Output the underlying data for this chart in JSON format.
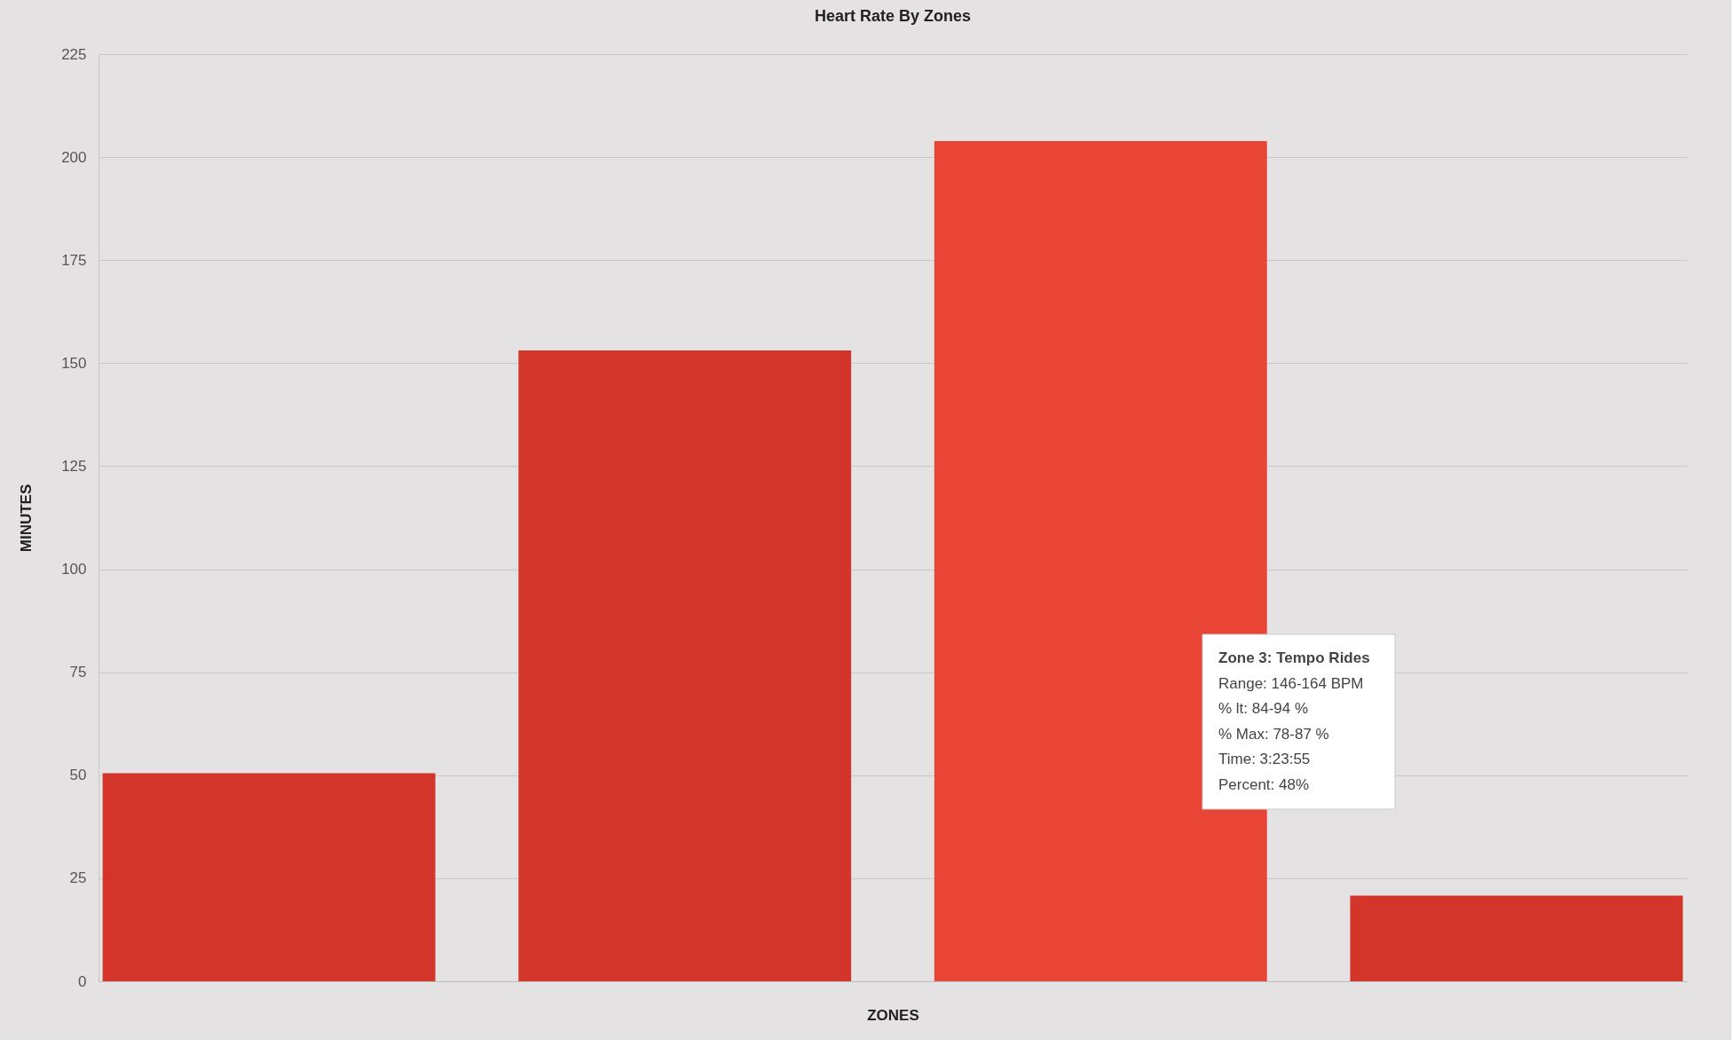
{
  "chart_data": {
    "type": "bar",
    "title": "Heart Rate By Zones",
    "xlabel": "ZONES",
    "ylabel": "MINUTES",
    "categories": [
      null,
      null,
      null,
      null
    ],
    "values": [
      50.5,
      153.1,
      203.9,
      20.8
    ],
    "colors": [
      "#d3352a",
      "#d3352a",
      "#e84536",
      "#d3352a"
    ],
    "ylim": [
      0,
      225
    ],
    "yticks": [
      0,
      25,
      50,
      75,
      100,
      125,
      150,
      175,
      200,
      225
    ],
    "grid": "y",
    "annotations": [
      "Zone 3: Tempo Rides",
      "Range: 146-164 BPM",
      "% lt: 84-94 %",
      "% Max: 78-87 %",
      "Time: 3:23:55",
      "Percent: 48%"
    ]
  }
}
